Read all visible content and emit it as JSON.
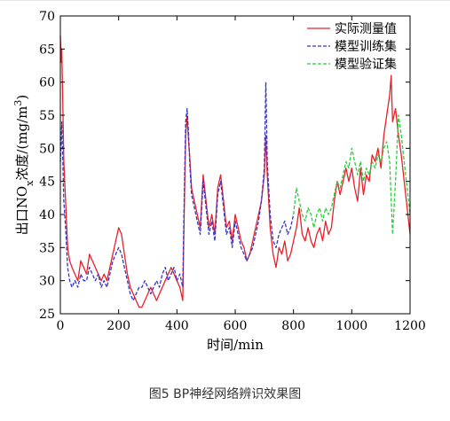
{
  "caption": "图5 BP神经网络辨识效果图",
  "chart_data": {
    "type": "line",
    "xlabel": "时间/min",
    "ylabel_main": "出口NO",
    "ylabel_sub": "x",
    "ylabel_tail": "浓度/(mg/m",
    "ylabel_sup": "3",
    "ylabel_end": ")",
    "xlim": [
      0,
      1200
    ],
    "ylim": [
      25,
      70
    ],
    "x_ticks": [
      0,
      200,
      400,
      600,
      800,
      1000,
      1200
    ],
    "y_ticks": [
      25,
      30,
      35,
      40,
      45,
      50,
      55,
      60,
      65,
      70
    ],
    "legend_position": "top-right",
    "series": [
      {
        "name": "实际测量值",
        "color": "#e8202a",
        "style": "solid",
        "x": [
          0,
          3,
          5,
          8,
          12,
          18,
          25,
          32,
          40,
          50,
          60,
          70,
          80,
          90,
          100,
          110,
          120,
          130,
          140,
          150,
          160,
          170,
          180,
          190,
          200,
          210,
          220,
          230,
          240,
          250,
          260,
          270,
          280,
          290,
          300,
          310,
          320,
          330,
          340,
          350,
          360,
          370,
          380,
          390,
          400,
          410,
          415,
          420,
          425,
          430,
          435,
          440,
          445,
          450,
          460,
          470,
          480,
          490,
          500,
          510,
          520,
          530,
          540,
          550,
          560,
          570,
          580,
          590,
          600,
          610,
          620,
          630,
          640,
          650,
          660,
          670,
          680,
          690,
          700,
          705,
          710,
          720,
          730,
          740,
          750,
          760,
          770,
          780,
          790,
          800,
          810,
          820,
          830,
          840,
          850,
          860,
          870,
          880,
          890,
          900,
          910,
          920,
          930,
          940,
          950,
          960,
          970,
          980,
          990,
          1000,
          1010,
          1020,
          1030,
          1040,
          1050,
          1060,
          1070,
          1080,
          1090,
          1100,
          1110,
          1120,
          1130,
          1135,
          1140,
          1150,
          1160,
          1170,
          1180,
          1190,
          1200
        ],
        "y": [
          67,
          63,
          65,
          58,
          48,
          42,
          35,
          33,
          32,
          31,
          30,
          33,
          32,
          31,
          34,
          33,
          32,
          31,
          30,
          31,
          30,
          32,
          34,
          36,
          38,
          37,
          34,
          31,
          29,
          28,
          27,
          26,
          26,
          27,
          28,
          29,
          28,
          27,
          28,
          29,
          30,
          31,
          32,
          31,
          30,
          29,
          28,
          27,
          40,
          52,
          55,
          51,
          48,
          44,
          42,
          40,
          38,
          46,
          42,
          38,
          40,
          37,
          44,
          46,
          42,
          38,
          39,
          36,
          40,
          38,
          36,
          35,
          33,
          34,
          36,
          38,
          40,
          42,
          46,
          52,
          46,
          38,
          34,
          32,
          35,
          34,
          36,
          33,
          34,
          36,
          38,
          41,
          37,
          36,
          38,
          36,
          35,
          37,
          38,
          36,
          39,
          37,
          38,
          42,
          45,
          43,
          45,
          47,
          45,
          47,
          44,
          42,
          47,
          43,
          46,
          45,
          49,
          48,
          50,
          47,
          52,
          55,
          58,
          61,
          54,
          56,
          52,
          49,
          45,
          41,
          37
        ]
      },
      {
        "name": "模型训练集",
        "color": "#3333cc",
        "style": "dashed",
        "x": [
          0,
          3,
          5,
          8,
          12,
          18,
          25,
          32,
          40,
          50,
          60,
          70,
          80,
          90,
          100,
          110,
          120,
          130,
          140,
          150,
          160,
          170,
          180,
          190,
          200,
          210,
          220,
          230,
          240,
          250,
          260,
          270,
          280,
          290,
          300,
          310,
          320,
          330,
          340,
          350,
          360,
          370,
          380,
          390,
          400,
          410,
          415,
          420,
          425,
          430,
          435,
          440,
          445,
          450,
          460,
          470,
          480,
          490,
          500,
          510,
          520,
          530,
          540,
          550,
          560,
          570,
          580,
          590,
          600,
          610,
          620,
          630,
          640,
          650,
          660,
          670,
          680,
          690,
          700,
          705,
          710,
          720,
          730,
          740,
          750,
          760,
          770,
          780,
          790,
          800
        ],
        "y": [
          48,
          51,
          54,
          49,
          42,
          38,
          32,
          30,
          29,
          30,
          29,
          31,
          30,
          30,
          32,
          31,
          30,
          31,
          29,
          30,
          29,
          31,
          33,
          34,
          35,
          34,
          32,
          30,
          28,
          27,
          28,
          29,
          29,
          30,
          29,
          28,
          29,
          30,
          29,
          31,
          32,
          30,
          31,
          32,
          30,
          31,
          30,
          29,
          42,
          54,
          56,
          52,
          47,
          43,
          41,
          39,
          37,
          45,
          41,
          37,
          39,
          36,
          43,
          45,
          41,
          37,
          38,
          35,
          39,
          37,
          35,
          34,
          33,
          34,
          35,
          37,
          39,
          42,
          47,
          60,
          48,
          40,
          36,
          35,
          37,
          38,
          39,
          37,
          38,
          40
        ]
      },
      {
        "name": "模型验证集",
        "color": "#2ecc40",
        "style": "dashed",
        "x": [
          800,
          810,
          820,
          830,
          840,
          850,
          860,
          870,
          880,
          890,
          900,
          910,
          920,
          930,
          940,
          950,
          960,
          970,
          980,
          990,
          1000,
          1010,
          1020,
          1030,
          1040,
          1050,
          1060,
          1070,
          1080,
          1090,
          1100,
          1110,
          1120,
          1130,
          1140,
          1150,
          1160,
          1170,
          1180,
          1190,
          1200
        ],
        "y": [
          40,
          44,
          42,
          40,
          39,
          41,
          40,
          38,
          40,
          41,
          39,
          41,
          40,
          41,
          43,
          45,
          44,
          46,
          48,
          47,
          50,
          48,
          46,
          48,
          45,
          47,
          46,
          48,
          47,
          49,
          48,
          50,
          51,
          48,
          37,
          45,
          55,
          52,
          48,
          44,
          40
        ]
      }
    ]
  }
}
